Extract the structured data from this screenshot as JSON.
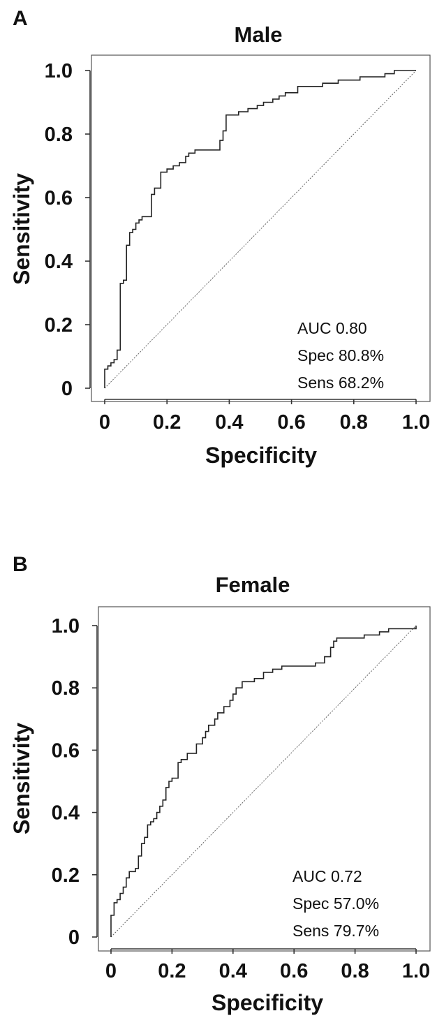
{
  "chart_data": [
    {
      "type": "line",
      "panel_label": "A",
      "title": "Male",
      "xlabel": "Specificity",
      "ylabel": "Sensitivity",
      "xlim": [
        0,
        1
      ],
      "ylim": [
        0,
        1
      ],
      "xticks": [
        "0",
        "0.2",
        "0.4",
        "0.6",
        "0.8",
        "1.0"
      ],
      "yticks": [
        "0",
        "0.2",
        "0.4",
        "0.6",
        "0.8",
        "1.0"
      ],
      "grid": false,
      "reference_line": "diagonal dotted",
      "annotations": [
        "AUC  0.80",
        "Spec 80.8%",
        "Sens 68.2%"
      ],
      "series": [
        {
          "points": [
            [
              0,
              0
            ],
            [
              0,
              0.06
            ],
            [
              0.01,
              0.06
            ],
            [
              0.01,
              0.07
            ],
            [
              0.02,
              0.07
            ],
            [
              0.02,
              0.08
            ],
            [
              0.03,
              0.08
            ],
            [
              0.03,
              0.09
            ],
            [
              0.04,
              0.09
            ],
            [
              0.04,
              0.12
            ],
            [
              0.05,
              0.12
            ],
            [
              0.05,
              0.33
            ],
            [
              0.06,
              0.33
            ],
            [
              0.06,
              0.34
            ],
            [
              0.07,
              0.34
            ],
            [
              0.07,
              0.45
            ],
            [
              0.08,
              0.45
            ],
            [
              0.08,
              0.49
            ],
            [
              0.09,
              0.49
            ],
            [
              0.09,
              0.5
            ],
            [
              0.1,
              0.5
            ],
            [
              0.1,
              0.52
            ],
            [
              0.11,
              0.52
            ],
            [
              0.11,
              0.53
            ],
            [
              0.12,
              0.53
            ],
            [
              0.12,
              0.54
            ],
            [
              0.15,
              0.54
            ],
            [
              0.15,
              0.61
            ],
            [
              0.16,
              0.61
            ],
            [
              0.16,
              0.63
            ],
            [
              0.18,
              0.63
            ],
            [
              0.18,
              0.68
            ],
            [
              0.2,
              0.68
            ],
            [
              0.2,
              0.69
            ],
            [
              0.22,
              0.69
            ],
            [
              0.22,
              0.7
            ],
            [
              0.24,
              0.7
            ],
            [
              0.24,
              0.71
            ],
            [
              0.26,
              0.71
            ],
            [
              0.26,
              0.73
            ],
            [
              0.27,
              0.73
            ],
            [
              0.27,
              0.74
            ],
            [
              0.29,
              0.74
            ],
            [
              0.29,
              0.75
            ],
            [
              0.37,
              0.75
            ],
            [
              0.37,
              0.78
            ],
            [
              0.38,
              0.78
            ],
            [
              0.38,
              0.81
            ],
            [
              0.39,
              0.81
            ],
            [
              0.39,
              0.86
            ],
            [
              0.43,
              0.86
            ],
            [
              0.43,
              0.87
            ],
            [
              0.46,
              0.87
            ],
            [
              0.46,
              0.88
            ],
            [
              0.49,
              0.88
            ],
            [
              0.49,
              0.89
            ],
            [
              0.51,
              0.89
            ],
            [
              0.51,
              0.9
            ],
            [
              0.54,
              0.9
            ],
            [
              0.54,
              0.91
            ],
            [
              0.56,
              0.91
            ],
            [
              0.56,
              0.92
            ],
            [
              0.58,
              0.92
            ],
            [
              0.58,
              0.93
            ],
            [
              0.62,
              0.93
            ],
            [
              0.62,
              0.95
            ],
            [
              0.7,
              0.95
            ],
            [
              0.7,
              0.96
            ],
            [
              0.75,
              0.96
            ],
            [
              0.75,
              0.97
            ],
            [
              0.82,
              0.97
            ],
            [
              0.82,
              0.98
            ],
            [
              0.9,
              0.98
            ],
            [
              0.9,
              0.99
            ],
            [
              0.93,
              0.99
            ],
            [
              0.93,
              1.0
            ],
            [
              1.0,
              1.0
            ]
          ]
        }
      ]
    },
    {
      "type": "line",
      "panel_label": "B",
      "title": "Female",
      "xlabel": "Specificity",
      "ylabel": "Sensitivity",
      "xlim": [
        0,
        1
      ],
      "ylim": [
        0,
        1
      ],
      "xticks": [
        "0",
        "0.2",
        "0.4",
        "0.6",
        "0.8",
        "1.0"
      ],
      "yticks": [
        "0",
        "0.2",
        "0.4",
        "0.6",
        "0.8",
        "1.0"
      ],
      "grid": false,
      "reference_line": "diagonal dotted",
      "annotations": [
        "AUC  0.72",
        "Spec 57.0%",
        "Sens 79.7%"
      ],
      "series": [
        {
          "points": [
            [
              0,
              0
            ],
            [
              0,
              0.07
            ],
            [
              0.01,
              0.07
            ],
            [
              0.01,
              0.11
            ],
            [
              0.02,
              0.11
            ],
            [
              0.02,
              0.12
            ],
            [
              0.03,
              0.12
            ],
            [
              0.03,
              0.14
            ],
            [
              0.04,
              0.14
            ],
            [
              0.04,
              0.16
            ],
            [
              0.05,
              0.16
            ],
            [
              0.05,
              0.19
            ],
            [
              0.06,
              0.19
            ],
            [
              0.06,
              0.21
            ],
            [
              0.08,
              0.21
            ],
            [
              0.08,
              0.22
            ],
            [
              0.09,
              0.22
            ],
            [
              0.09,
              0.26
            ],
            [
              0.1,
              0.26
            ],
            [
              0.1,
              0.3
            ],
            [
              0.11,
              0.3
            ],
            [
              0.11,
              0.32
            ],
            [
              0.12,
              0.32
            ],
            [
              0.12,
              0.36
            ],
            [
              0.13,
              0.36
            ],
            [
              0.13,
              0.37
            ],
            [
              0.14,
              0.37
            ],
            [
              0.14,
              0.38
            ],
            [
              0.15,
              0.38
            ],
            [
              0.15,
              0.4
            ],
            [
              0.16,
              0.4
            ],
            [
              0.16,
              0.42
            ],
            [
              0.17,
              0.42
            ],
            [
              0.17,
              0.44
            ],
            [
              0.18,
              0.44
            ],
            [
              0.18,
              0.48
            ],
            [
              0.19,
              0.48
            ],
            [
              0.19,
              0.5
            ],
            [
              0.2,
              0.5
            ],
            [
              0.2,
              0.51
            ],
            [
              0.22,
              0.51
            ],
            [
              0.22,
              0.56
            ],
            [
              0.23,
              0.56
            ],
            [
              0.23,
              0.57
            ],
            [
              0.25,
              0.57
            ],
            [
              0.25,
              0.59
            ],
            [
              0.28,
              0.59
            ],
            [
              0.28,
              0.62
            ],
            [
              0.3,
              0.62
            ],
            [
              0.3,
              0.64
            ],
            [
              0.31,
              0.64
            ],
            [
              0.31,
              0.66
            ],
            [
              0.32,
              0.66
            ],
            [
              0.32,
              0.68
            ],
            [
              0.34,
              0.68
            ],
            [
              0.34,
              0.7
            ],
            [
              0.35,
              0.7
            ],
            [
              0.35,
              0.72
            ],
            [
              0.37,
              0.72
            ],
            [
              0.37,
              0.74
            ],
            [
              0.39,
              0.74
            ],
            [
              0.39,
              0.76
            ],
            [
              0.4,
              0.76
            ],
            [
              0.4,
              0.78
            ],
            [
              0.41,
              0.78
            ],
            [
              0.41,
              0.8
            ],
            [
              0.43,
              0.8
            ],
            [
              0.43,
              0.82
            ],
            [
              0.47,
              0.82
            ],
            [
              0.47,
              0.83
            ],
            [
              0.5,
              0.83
            ],
            [
              0.5,
              0.85
            ],
            [
              0.53,
              0.85
            ],
            [
              0.53,
              0.86
            ],
            [
              0.56,
              0.86
            ],
            [
              0.56,
              0.87
            ],
            [
              0.67,
              0.87
            ],
            [
              0.67,
              0.88
            ],
            [
              0.7,
              0.88
            ],
            [
              0.7,
              0.9
            ],
            [
              0.72,
              0.9
            ],
            [
              0.72,
              0.93
            ],
            [
              0.73,
              0.93
            ],
            [
              0.73,
              0.95
            ],
            [
              0.74,
              0.95
            ],
            [
              0.74,
              0.96
            ],
            [
              0.83,
              0.96
            ],
            [
              0.83,
              0.97
            ],
            [
              0.88,
              0.97
            ],
            [
              0.88,
              0.98
            ],
            [
              0.91,
              0.98
            ],
            [
              0.91,
              0.99
            ],
            [
              1.0,
              0.99
            ],
            [
              1.0,
              1.0
            ]
          ]
        }
      ]
    }
  ]
}
